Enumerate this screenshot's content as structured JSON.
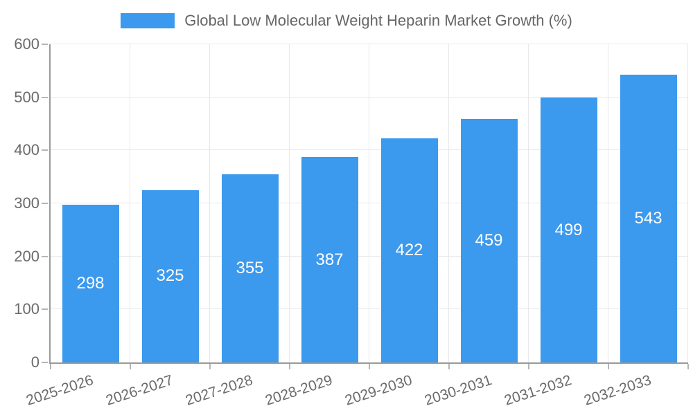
{
  "legend": {
    "label": "Global Low Molecular Weight Heparin Market Growth (%)"
  },
  "chart_data": {
    "type": "bar",
    "title": "Global Low Molecular Weight Heparin Market Growth (%)",
    "categories": [
      "2025-2026",
      "2026-2027",
      "2027-2028",
      "2028-2029",
      "2029-2030",
      "2030-2031",
      "2031-2032",
      "2032-2033"
    ],
    "values": [
      298,
      325,
      355,
      387,
      422,
      459,
      499,
      543
    ],
    "xlabel": "",
    "ylabel": "",
    "ylim": [
      0,
      600
    ],
    "yticks": [
      0,
      100,
      200,
      300,
      400,
      500,
      600
    ],
    "grid": true,
    "legend_position": "top",
    "value_labels": "inside-center",
    "colors": {
      "bar": "#3b99ee",
      "gridline": "#e8e8e8",
      "axis": "#999999",
      "tick_mark": "#b5b5b5",
      "tick_text": "#6b6b6b",
      "value_text": "#ffffff",
      "legend_text": "#666666"
    }
  }
}
